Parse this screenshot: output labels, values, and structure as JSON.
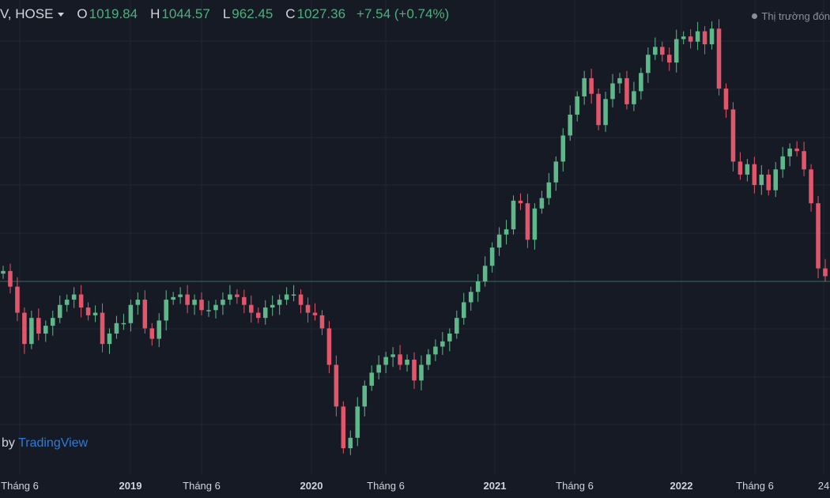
{
  "header": {
    "symbol": "V, HOSE",
    "ohlc": [
      {
        "key": "O",
        "value": "1019.84"
      },
      {
        "key": "H",
        "value": "1044.57"
      },
      {
        "key": "L",
        "value": "962.45"
      },
      {
        "key": "C",
        "value": "1027.36"
      }
    ],
    "change": "+7.54 (+0.74%)",
    "market_status": "Thị trường đón"
  },
  "watermark": {
    "prefix": "by ",
    "brand": "TradingView"
  },
  "colors": {
    "background": "#161a25",
    "grid": "#232632",
    "up": "#5fb88a",
    "down": "#e0566b",
    "reference_line": "#3d6b56"
  },
  "x_axis_labels": [
    {
      "text": "Tháng 6",
      "year": false
    },
    {
      "text": "2019",
      "year": true
    },
    {
      "text": "Tháng 6",
      "year": false
    },
    {
      "text": "2020",
      "year": true
    },
    {
      "text": "Tháng 6",
      "year": false
    },
    {
      "text": "2021",
      "year": true
    },
    {
      "text": "Tháng 6",
      "year": false
    },
    {
      "text": "2022",
      "year": true
    },
    {
      "text": "Tháng 6",
      "year": false
    },
    {
      "text": "24",
      "year": false
    }
  ],
  "chart_data": {
    "type": "candlestick",
    "interval": "weekly",
    "x_range": [
      "2018-05",
      "2022-10"
    ],
    "reference_line": 1020,
    "ylim": [
      650,
      1560
    ],
    "grid": true,
    "series": [
      {
        "name": "close",
        "values": [
          1040,
          1010,
          960,
          900,
          950,
          920,
          935,
          950,
          975,
          985,
          995,
          970,
          955,
          960,
          900,
          920,
          940,
          940,
          975,
          985,
          930,
          910,
          945,
          985,
          990,
          995,
          975,
          985,
          965,
          965,
          975,
          985,
          995,
          990,
          975,
          960,
          950,
          970,
          975,
          985,
          995,
          995,
          975,
          960,
          955,
          930,
          860,
          780,
          700,
          720,
          780,
          820,
          845,
          860,
          875,
          880,
          860,
          870,
          830,
          860,
          880,
          895,
          905,
          920,
          950,
          980,
          1000,
          1020,
          1050,
          1085,
          1110,
          1120,
          1175,
          1170,
          1100,
          1160,
          1180,
          1210,
          1250,
          1300,
          1340,
          1375,
          1410,
          1380,
          1320,
          1370,
          1400,
          1410,
          1360,
          1385,
          1420,
          1455,
          1470,
          1455,
          1440,
          1485,
          1490,
          1480,
          1500,
          1475,
          1505,
          1390,
          1350,
          1250,
          1225,
          1245,
          1205,
          1225,
          1195,
          1235,
          1260,
          1275,
          1270,
          1235,
          1170,
          1045,
          1030
        ]
      }
    ]
  }
}
